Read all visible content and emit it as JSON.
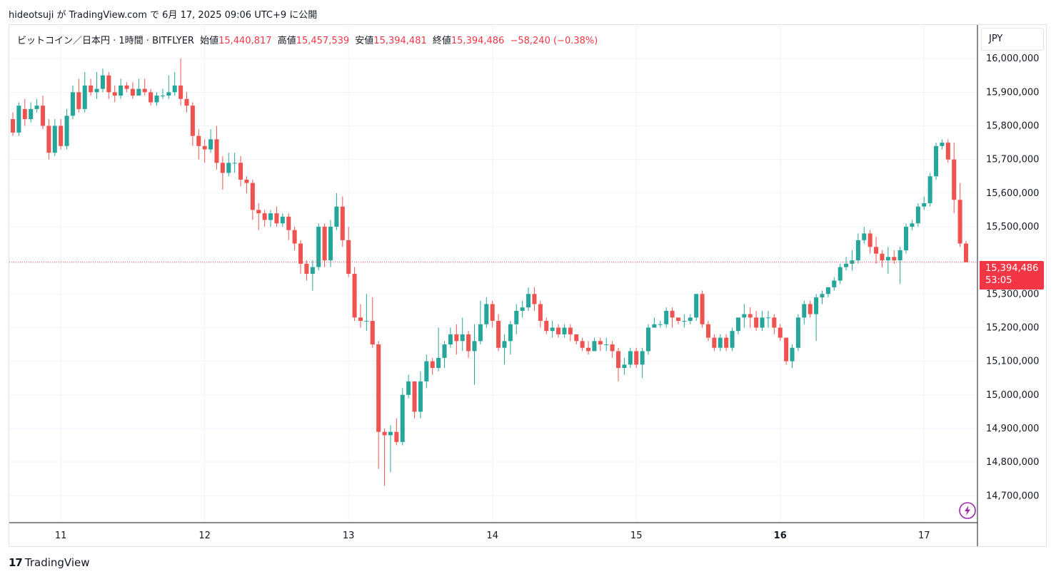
{
  "attribution": "hideotsuji が TradingView.com で 6月 17, 2025 09:06 UTC+9 に公開",
  "legend": {
    "symbol": "ビットコイン／日本円 · 1時間 · BITFLYER",
    "open_label": "始値",
    "open": "15,440,817",
    "high_label": "高値",
    "high": "15,457,539",
    "low_label": "安値",
    "low": "15,394,481",
    "close_label": "終値",
    "close": "15,394,486",
    "change": "−58,240 (−0.38%)"
  },
  "currency": "JPY",
  "price_tag": {
    "price": "15,394,486",
    "countdown": "53:05"
  },
  "footer": {
    "brand": "TradingView",
    "mark": "17"
  },
  "colors": {
    "up": "#26a69a",
    "down": "#ef5350",
    "grid": "#f0f3fa",
    "tag": "#f23645",
    "flash": "#9c27b0"
  },
  "icons": {
    "flash": "flash-icon"
  },
  "chart_data": {
    "type": "candlestick",
    "y_ticks": [
      "16,000,000",
      "15,900,000",
      "15,800,000",
      "15,700,000",
      "15,600,000",
      "15,500,000",
      "15,300,000",
      "15,200,000",
      "15,100,000",
      "15,000,000",
      "14,900,000",
      "14,800,000",
      "14,700,000"
    ],
    "x_ticks": [
      "11",
      "12",
      "13",
      "14",
      "15",
      "16",
      "17"
    ],
    "ylim": [
      14620000,
      16100000
    ],
    "last_price": 15394486,
    "candles": [
      [
        15820000,
        15780000,
        15840000,
        15770000
      ],
      [
        15780000,
        15860000,
        15870000,
        15770000
      ],
      [
        15850000,
        15820000,
        15880000,
        15800000
      ],
      [
        15820000,
        15850000,
        15870000,
        15810000
      ],
      [
        15850000,
        15860000,
        15880000,
        15840000
      ],
      [
        15860000,
        15800000,
        15890000,
        15790000
      ],
      [
        15800000,
        15720000,
        15820000,
        15700000
      ],
      [
        15720000,
        15800000,
        15820000,
        15710000
      ],
      [
        15800000,
        15740000,
        15820000,
        15730000
      ],
      [
        15740000,
        15830000,
        15850000,
        15730000
      ],
      [
        15830000,
        15900000,
        15920000,
        15820000
      ],
      [
        15900000,
        15850000,
        15940000,
        15840000
      ],
      [
        15850000,
        15920000,
        15960000,
        15840000
      ],
      [
        15920000,
        15900000,
        15940000,
        15890000
      ],
      [
        15900000,
        15910000,
        15960000,
        15880000
      ],
      [
        15910000,
        15950000,
        15970000,
        15900000
      ],
      [
        15950000,
        15900000,
        15960000,
        15880000
      ],
      [
        15900000,
        15890000,
        15920000,
        15870000
      ],
      [
        15890000,
        15920000,
        15940000,
        15880000
      ],
      [
        15920000,
        15910000,
        15930000,
        15900000
      ],
      [
        15910000,
        15890000,
        15930000,
        15880000
      ],
      [
        15890000,
        15910000,
        15940000,
        15890000
      ],
      [
        15910000,
        15900000,
        15940000,
        15890000
      ],
      [
        15900000,
        15870000,
        15910000,
        15860000
      ],
      [
        15870000,
        15890000,
        15900000,
        15860000
      ],
      [
        15890000,
        15890000,
        15910000,
        15880000
      ],
      [
        15890000,
        15900000,
        15950000,
        15880000
      ],
      [
        15900000,
        15920000,
        15960000,
        15890000
      ],
      [
        15920000,
        15880000,
        16000000,
        15860000
      ],
      [
        15880000,
        15860000,
        15900000,
        15840000
      ],
      [
        15860000,
        15770000,
        15870000,
        15740000
      ],
      [
        15770000,
        15740000,
        15790000,
        15700000
      ],
      [
        15740000,
        15730000,
        15760000,
        15690000
      ],
      [
        15730000,
        15760000,
        15790000,
        15720000
      ],
      [
        15760000,
        15690000,
        15800000,
        15670000
      ],
      [
        15690000,
        15660000,
        15710000,
        15610000
      ],
      [
        15660000,
        15690000,
        15720000,
        15650000
      ],
      [
        15690000,
        15690000,
        15720000,
        15660000
      ],
      [
        15690000,
        15640000,
        15710000,
        15620000
      ],
      [
        15640000,
        15630000,
        15650000,
        15600000
      ],
      [
        15630000,
        15550000,
        15640000,
        15520000
      ],
      [
        15550000,
        15540000,
        15570000,
        15490000
      ],
      [
        15540000,
        15520000,
        15550000,
        15500000
      ],
      [
        15520000,
        15540000,
        15550000,
        15500000
      ],
      [
        15540000,
        15510000,
        15560000,
        15500000
      ],
      [
        15510000,
        15530000,
        15540000,
        15500000
      ],
      [
        15530000,
        15490000,
        15540000,
        15460000
      ],
      [
        15490000,
        15450000,
        15500000,
        15430000
      ],
      [
        15450000,
        15390000,
        15460000,
        15360000
      ],
      [
        15390000,
        15360000,
        15400000,
        15340000
      ],
      [
        15360000,
        15380000,
        15400000,
        15310000
      ],
      [
        15380000,
        15500000,
        15510000,
        15370000
      ],
      [
        15500000,
        15400000,
        15510000,
        15380000
      ],
      [
        15400000,
        15500000,
        15520000,
        15380000
      ],
      [
        15500000,
        15560000,
        15600000,
        15490000
      ],
      [
        15560000,
        15460000,
        15590000,
        15440000
      ],
      [
        15460000,
        15360000,
        15500000,
        15350000
      ],
      [
        15360000,
        15230000,
        15380000,
        15220000
      ],
      [
        15230000,
        15220000,
        15270000,
        15200000
      ],
      [
        15220000,
        15220000,
        15300000,
        15190000
      ],
      [
        15220000,
        15150000,
        15290000,
        15140000
      ],
      [
        15150000,
        14890000,
        15160000,
        14780000
      ],
      [
        14890000,
        14880000,
        14900000,
        14730000
      ],
      [
        14880000,
        14890000,
        14910000,
        14770000
      ],
      [
        14890000,
        14860000,
        14930000,
        14850000
      ],
      [
        14860000,
        15000000,
        15020000,
        14850000
      ],
      [
        15000000,
        15040000,
        15060000,
        14990000
      ],
      [
        15040000,
        14950000,
        15040000,
        14930000
      ],
      [
        14950000,
        15040000,
        15070000,
        14930000
      ],
      [
        15040000,
        15100000,
        15120000,
        15020000
      ],
      [
        15100000,
        15080000,
        15110000,
        15060000
      ],
      [
        15080000,
        15110000,
        15200000,
        15070000
      ],
      [
        15110000,
        15150000,
        15160000,
        15080000
      ],
      [
        15150000,
        15180000,
        15200000,
        15140000
      ],
      [
        15180000,
        15160000,
        15210000,
        15120000
      ],
      [
        15160000,
        15180000,
        15230000,
        15130000
      ],
      [
        15180000,
        15130000,
        15190000,
        15110000
      ],
      [
        15130000,
        15160000,
        15210000,
        15030000
      ],
      [
        15160000,
        15210000,
        15280000,
        15150000
      ],
      [
        15210000,
        15270000,
        15290000,
        15200000
      ],
      [
        15270000,
        15220000,
        15280000,
        15200000
      ],
      [
        15220000,
        15140000,
        15240000,
        15130000
      ],
      [
        15140000,
        15160000,
        15180000,
        15090000
      ],
      [
        15160000,
        15210000,
        15220000,
        15120000
      ],
      [
        15210000,
        15250000,
        15270000,
        15180000
      ],
      [
        15250000,
        15260000,
        15280000,
        15230000
      ],
      [
        15260000,
        15300000,
        15320000,
        15250000
      ],
      [
        15300000,
        15270000,
        15320000,
        15250000
      ],
      [
        15270000,
        15220000,
        15280000,
        15200000
      ],
      [
        15220000,
        15190000,
        15230000,
        15180000
      ],
      [
        15190000,
        15200000,
        15220000,
        15170000
      ],
      [
        15200000,
        15180000,
        15210000,
        15170000
      ],
      [
        15180000,
        15200000,
        15210000,
        15170000
      ],
      [
        15200000,
        15180000,
        15210000,
        15160000
      ],
      [
        15180000,
        15160000,
        15180000,
        15150000
      ],
      [
        15160000,
        15140000,
        15170000,
        15130000
      ],
      [
        15140000,
        15130000,
        15160000,
        15120000
      ],
      [
        15130000,
        15160000,
        15170000,
        15130000
      ],
      [
        15160000,
        15150000,
        15170000,
        15130000
      ],
      [
        15150000,
        15150000,
        15170000,
        15130000
      ],
      [
        15150000,
        15130000,
        15160000,
        15110000
      ],
      [
        15130000,
        15080000,
        15140000,
        15040000
      ],
      [
        15080000,
        15090000,
        15110000,
        15060000
      ],
      [
        15090000,
        15130000,
        15140000,
        15080000
      ],
      [
        15130000,
        15090000,
        15140000,
        15080000
      ],
      [
        15090000,
        15130000,
        15140000,
        15050000
      ],
      [
        15130000,
        15200000,
        15210000,
        15120000
      ],
      [
        15200000,
        15210000,
        15230000,
        15200000
      ],
      [
        15210000,
        15210000,
        15220000,
        15200000
      ],
      [
        15210000,
        15250000,
        15260000,
        15200000
      ],
      [
        15250000,
        15230000,
        15260000,
        15200000
      ],
      [
        15230000,
        15220000,
        15230000,
        15210000
      ],
      [
        15220000,
        15220000,
        15240000,
        15200000
      ],
      [
        15220000,
        15230000,
        15240000,
        15210000
      ],
      [
        15230000,
        15300000,
        15300000,
        15220000
      ],
      [
        15300000,
        15210000,
        15310000,
        15200000
      ],
      [
        15210000,
        15170000,
        15220000,
        15160000
      ],
      [
        15170000,
        15140000,
        15180000,
        15130000
      ],
      [
        15140000,
        15170000,
        15180000,
        15130000
      ],
      [
        15170000,
        15140000,
        15180000,
        15130000
      ],
      [
        15140000,
        15190000,
        15200000,
        15130000
      ],
      [
        15190000,
        15230000,
        15230000,
        15180000
      ],
      [
        15230000,
        15240000,
        15270000,
        15200000
      ],
      [
        15240000,
        15230000,
        15260000,
        15200000
      ],
      [
        15230000,
        15200000,
        15250000,
        15190000
      ],
      [
        15200000,
        15230000,
        15250000,
        15190000
      ],
      [
        15230000,
        15230000,
        15250000,
        15200000
      ],
      [
        15230000,
        15200000,
        15240000,
        15180000
      ],
      [
        15200000,
        15170000,
        15210000,
        15160000
      ],
      [
        15170000,
        15100000,
        15170000,
        15090000
      ],
      [
        15100000,
        15140000,
        15150000,
        15080000
      ],
      [
        15140000,
        15230000,
        15240000,
        15130000
      ],
      [
        15230000,
        15270000,
        15280000,
        15210000
      ],
      [
        15270000,
        15240000,
        15280000,
        15230000
      ],
      [
        15240000,
        15290000,
        15300000,
        15160000
      ],
      [
        15290000,
        15300000,
        15310000,
        15270000
      ],
      [
        15300000,
        15320000,
        15320000,
        15290000
      ],
      [
        15320000,
        15340000,
        15350000,
        15310000
      ],
      [
        15340000,
        15380000,
        15390000,
        15330000
      ],
      [
        15380000,
        15390000,
        15410000,
        15370000
      ],
      [
        15390000,
        15400000,
        15430000,
        15370000
      ],
      [
        15400000,
        15460000,
        15480000,
        15390000
      ],
      [
        15460000,
        15480000,
        15500000,
        15450000
      ],
      [
        15480000,
        15440000,
        15490000,
        15420000
      ],
      [
        15440000,
        15420000,
        15470000,
        15390000
      ],
      [
        15420000,
        15400000,
        15430000,
        15380000
      ],
      [
        15400000,
        15410000,
        15440000,
        15360000
      ],
      [
        15410000,
        15400000,
        15430000,
        15390000
      ],
      [
        15400000,
        15430000,
        15440000,
        15330000
      ],
      [
        15430000,
        15500000,
        15510000,
        15420000
      ],
      [
        15500000,
        15510000,
        15520000,
        15490000
      ],
      [
        15510000,
        15560000,
        15570000,
        15500000
      ],
      [
        15560000,
        15570000,
        15590000,
        15550000
      ],
      [
        15570000,
        15650000,
        15660000,
        15560000
      ],
      [
        15650000,
        15740000,
        15750000,
        15640000
      ],
      [
        15740000,
        15750000,
        15760000,
        15730000
      ],
      [
        15750000,
        15700000,
        15760000,
        15690000
      ],
      [
        15700000,
        15580000,
        15750000,
        15540000
      ],
      [
        15580000,
        15450000,
        15630000,
        15440000
      ],
      [
        15450000,
        15394486,
        15457539,
        15394481
      ]
    ]
  }
}
